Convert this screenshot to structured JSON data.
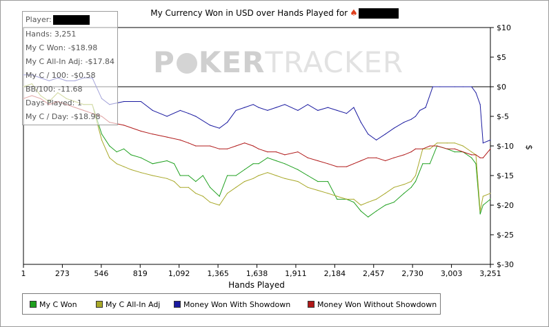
{
  "chart_data": {
    "type": "line",
    "title": "My Currency Won in USD over Hands Played for",
    "xlabel": "Hands Played",
    "ylabel": "$",
    "xlim": [
      1,
      3251
    ],
    "ylim": [
      -30,
      10
    ],
    "x_ticks": [
      "1",
      "273",
      "546",
      "819",
      "1,092",
      "1,365",
      "1,638",
      "1,911",
      "2,184",
      "2,457",
      "2,730",
      "3,003",
      "3,251"
    ],
    "y_ticks": [
      "$10",
      "$5",
      "$0",
      "$-5",
      "$-10",
      "$-15",
      "$-20",
      "$-25",
      "$-30"
    ],
    "grid": false,
    "legend_position": "bottom",
    "series": [
      {
        "name": "My C Won",
        "color": "#1ea01e",
        "x": [
          1,
          60,
          120,
          180,
          240,
          300,
          360,
          420,
          480,
          546,
          600,
          650,
          700,
          750,
          819,
          900,
          1000,
          1050,
          1092,
          1150,
          1200,
          1250,
          1300,
          1365,
          1420,
          1480,
          1540,
          1600,
          1638,
          1700,
          1760,
          1820,
          1911,
          1980,
          2050,
          2120,
          2184,
          2250,
          2300,
          2350,
          2400,
          2457,
          2520,
          2580,
          2650,
          2700,
          2730,
          2780,
          2830,
          2880,
          2950,
          3003,
          3060,
          3120,
          3150,
          3180,
          3200,
          3251
        ],
        "y": [
          0,
          0.5,
          -1.5,
          -2.5,
          -1,
          -2,
          -2.5,
          -3,
          -3,
          -8,
          -10,
          -11,
          -10.5,
          -11.5,
          -12,
          -13,
          -12.5,
          -13,
          -15,
          -15,
          -16,
          -15,
          -17,
          -18.5,
          -15,
          -15,
          -14,
          -13,
          -13,
          -12,
          -12.5,
          -13,
          -14,
          -15,
          -16,
          -16,
          -19,
          -19,
          -19.5,
          -21,
          -22,
          -21,
          -20,
          -19.5,
          -18,
          -17,
          -16,
          -13,
          -13,
          -10,
          -10.5,
          -11,
          -11,
          -12,
          -13,
          -21.5,
          -20,
          -19
        ]
      },
      {
        "name": "My C All-In Adj",
        "color": "#a8a828",
        "x": [
          1,
          60,
          120,
          180,
          240,
          300,
          360,
          420,
          480,
          546,
          600,
          650,
          700,
          750,
          819,
          900,
          1000,
          1050,
          1092,
          1150,
          1200,
          1250,
          1300,
          1365,
          1420,
          1480,
          1540,
          1600,
          1638,
          1700,
          1760,
          1820,
          1911,
          1980,
          2050,
          2120,
          2184,
          2250,
          2300,
          2350,
          2400,
          2457,
          2520,
          2580,
          2650,
          2700,
          2730,
          2780,
          2830,
          2880,
          2950,
          3003,
          3060,
          3120,
          3150,
          3180,
          3200,
          3251
        ],
        "y": [
          0,
          0.5,
          -1.5,
          -2.5,
          -1,
          -2,
          -2.5,
          -3,
          -3,
          -9,
          -12,
          -13,
          -13.5,
          -14,
          -14.5,
          -15,
          -15.5,
          -16,
          -17,
          -17,
          -18,
          -18.5,
          -19.5,
          -20,
          -18,
          -17,
          -16,
          -15.5,
          -15,
          -14.5,
          -15,
          -15.5,
          -16,
          -17,
          -17.5,
          -18,
          -18.5,
          -19,
          -19,
          -20,
          -19.5,
          -19,
          -18,
          -17,
          -16.5,
          -16,
          -15,
          -10.5,
          -10.5,
          -9.5,
          -9.5,
          -9.5,
          -10,
          -11,
          -11.5,
          -21,
          -18.5,
          -18
        ]
      },
      {
        "name": "Money Won With Showdown",
        "color": "#1a1aa0",
        "x": [
          1,
          60,
          120,
          180,
          240,
          300,
          360,
          420,
          480,
          546,
          600,
          700,
          819,
          900,
          1000,
          1092,
          1150,
          1200,
          1300,
          1365,
          1420,
          1480,
          1540,
          1600,
          1638,
          1700,
          1760,
          1820,
          1911,
          1980,
          2050,
          2120,
          2184,
          2250,
          2300,
          2350,
          2400,
          2457,
          2520,
          2580,
          2650,
          2700,
          2730,
          2760,
          2800,
          2850,
          2900,
          3003,
          3060,
          3120,
          3150,
          3180,
          3200,
          3251
        ],
        "y": [
          2,
          2,
          1.5,
          1,
          1.5,
          1,
          1,
          1.5,
          1.5,
          -2,
          -3,
          -2.5,
          -2.5,
          -4,
          -5,
          -4,
          -4.5,
          -5,
          -6.5,
          -7,
          -6,
          -4,
          -3.5,
          -3,
          -3.5,
          -4,
          -3.5,
          -3,
          -4,
          -3,
          -4,
          -3.5,
          -4,
          -4.5,
          -3.5,
          -6,
          -8,
          -9,
          -8,
          -7,
          -6,
          -5.5,
          -5,
          -4,
          -3.5,
          0,
          0,
          0,
          0,
          0,
          -1,
          -3,
          -9.5,
          -9
        ]
      },
      {
        "name": "Money Won Without Showdown",
        "color": "#b01818",
        "x": [
          1,
          60,
          120,
          180,
          240,
          300,
          360,
          420,
          480,
          546,
          600,
          700,
          819,
          900,
          1000,
          1092,
          1150,
          1200,
          1300,
          1365,
          1420,
          1480,
          1540,
          1600,
          1638,
          1700,
          1760,
          1820,
          1911,
          1980,
          2050,
          2120,
          2184,
          2250,
          2300,
          2350,
          2400,
          2457,
          2520,
          2580,
          2650,
          2700,
          2730,
          2780,
          2830,
          2880,
          2950,
          3003,
          3060,
          3120,
          3150,
          3180,
          3200,
          3251
        ],
        "y": [
          -2,
          -1.5,
          -2,
          -3,
          -2.5,
          -3,
          -3.5,
          -4,
          -4.5,
          -5,
          -6,
          -6.5,
          -7.5,
          -8,
          -8.5,
          -9,
          -9.5,
          -10,
          -10,
          -10.5,
          -10.5,
          -10,
          -9.5,
          -10,
          -10.5,
          -11,
          -11,
          -11.5,
          -11,
          -12,
          -12.5,
          -13,
          -13.5,
          -13.5,
          -13,
          -12.5,
          -12,
          -12,
          -12.5,
          -12,
          -11.5,
          -11,
          -10.5,
          -10.5,
          -10,
          -10,
          -10.5,
          -10.5,
          -11,
          -11.5,
          -11.5,
          -12,
          -12,
          -10.5
        ]
      }
    ]
  },
  "header": {
    "title_text": "My Currency Won in USD over Hands Played for",
    "spade_symbol": "♠"
  },
  "stats": {
    "player_label": "Player:",
    "rows": [
      "Hands: 3,251",
      "My C Won: -$18.98",
      "My C All-In Adj: -$17.84",
      "My C / 100: -$0.58",
      "BB/100: -11.68",
      "Days Played: 1",
      "My C / Day: -$18.98"
    ]
  },
  "watermark": {
    "part1": "P",
    "part2": "KER",
    "part3": "TRACKER"
  }
}
